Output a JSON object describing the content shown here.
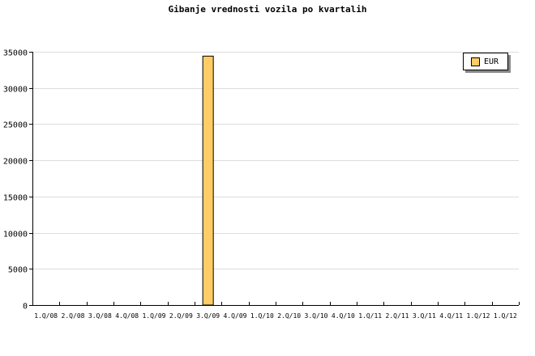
{
  "chart_data": {
    "type": "bar",
    "title": "Gibanje vrednosti vozila po kvartalih",
    "categories": [
      "1.Q/08",
      "2.Q/08",
      "3.Q/08",
      "4.Q/08",
      "1.Q/09",
      "2.Q/09",
      "3.Q/09",
      "4.Q/09",
      "1.Q/10",
      "2.Q/10",
      "3.Q/10",
      "4.Q/10",
      "1.Q/11",
      "2.Q/11",
      "3.Q/11",
      "4.Q/11",
      "1.Q/12",
      "1.Q/12"
    ],
    "series": [
      {
        "name": "EUR",
        "values": [
          0,
          0,
          0,
          0,
          0,
          0,
          34400,
          0,
          0,
          0,
          0,
          0,
          0,
          0,
          0,
          0,
          0,
          0
        ],
        "color": "#ffcc66"
      }
    ],
    "ylim": [
      0,
      35000
    ],
    "yticks": [
      0,
      5000,
      10000,
      15000,
      20000,
      25000,
      30000,
      35000
    ],
    "grid": true,
    "legend": "top-right",
    "xlabel": "",
    "ylabel": ""
  }
}
